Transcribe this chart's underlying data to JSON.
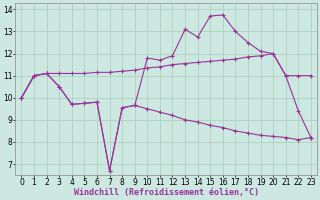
{
  "background_color": "#cce8e0",
  "grid_color": "#aaccbb",
  "line_color": "#993399",
  "marker_size": 3,
  "line_width": 0.8,
  "xlabel": "Windchill (Refroidissement éolien,°C)",
  "xlabel_fontsize": 6,
  "tick_fontsize": 5.5,
  "xlim": [
    -0.5,
    23.5
  ],
  "ylim": [
    6.5,
    14.3
  ],
  "yticks": [
    7,
    8,
    9,
    10,
    11,
    12,
    13,
    14
  ],
  "xticks": [
    0,
    1,
    2,
    3,
    4,
    5,
    6,
    7,
    8,
    9,
    10,
    11,
    12,
    13,
    14,
    15,
    16,
    17,
    18,
    19,
    20,
    21,
    22,
    23
  ],
  "curve1_x": [
    0,
    1,
    2,
    3,
    4,
    5,
    6,
    7,
    8,
    9,
    10,
    11,
    12,
    13,
    14,
    15,
    16,
    17,
    18,
    19,
    20,
    21,
    22,
    23
  ],
  "curve1_y": [
    10.0,
    11.0,
    11.1,
    11.1,
    11.1,
    11.1,
    11.15,
    11.15,
    11.2,
    11.25,
    11.35,
    11.4,
    11.5,
    11.55,
    11.6,
    11.65,
    11.7,
    11.75,
    11.85,
    11.9,
    12.0,
    11.0,
    11.0,
    11.0
  ],
  "curve2_x": [
    0,
    1,
    2,
    3,
    4,
    5,
    6,
    7,
    8,
    9,
    10,
    11,
    12,
    13,
    14,
    15,
    16,
    17,
    18,
    19,
    20,
    21,
    22,
    23
  ],
  "curve2_y": [
    10.0,
    11.0,
    11.1,
    10.5,
    9.7,
    9.75,
    9.8,
    6.7,
    9.55,
    9.65,
    11.8,
    11.7,
    11.9,
    13.1,
    12.75,
    13.7,
    13.75,
    13.0,
    12.5,
    12.1,
    12.0,
    11.0,
    9.4,
    8.2
  ],
  "curve3_x": [
    0,
    1,
    2,
    3,
    4,
    5,
    6,
    7,
    8,
    9,
    10,
    11,
    12,
    13,
    14,
    15,
    16,
    17,
    18,
    19,
    20,
    21,
    22,
    23
  ],
  "curve3_y": [
    10.0,
    11.0,
    11.1,
    10.5,
    9.7,
    9.75,
    9.8,
    6.7,
    9.55,
    9.65,
    9.5,
    9.35,
    9.2,
    9.0,
    8.9,
    8.75,
    8.65,
    8.5,
    8.4,
    8.3,
    8.25,
    8.2,
    8.1,
    8.2
  ]
}
